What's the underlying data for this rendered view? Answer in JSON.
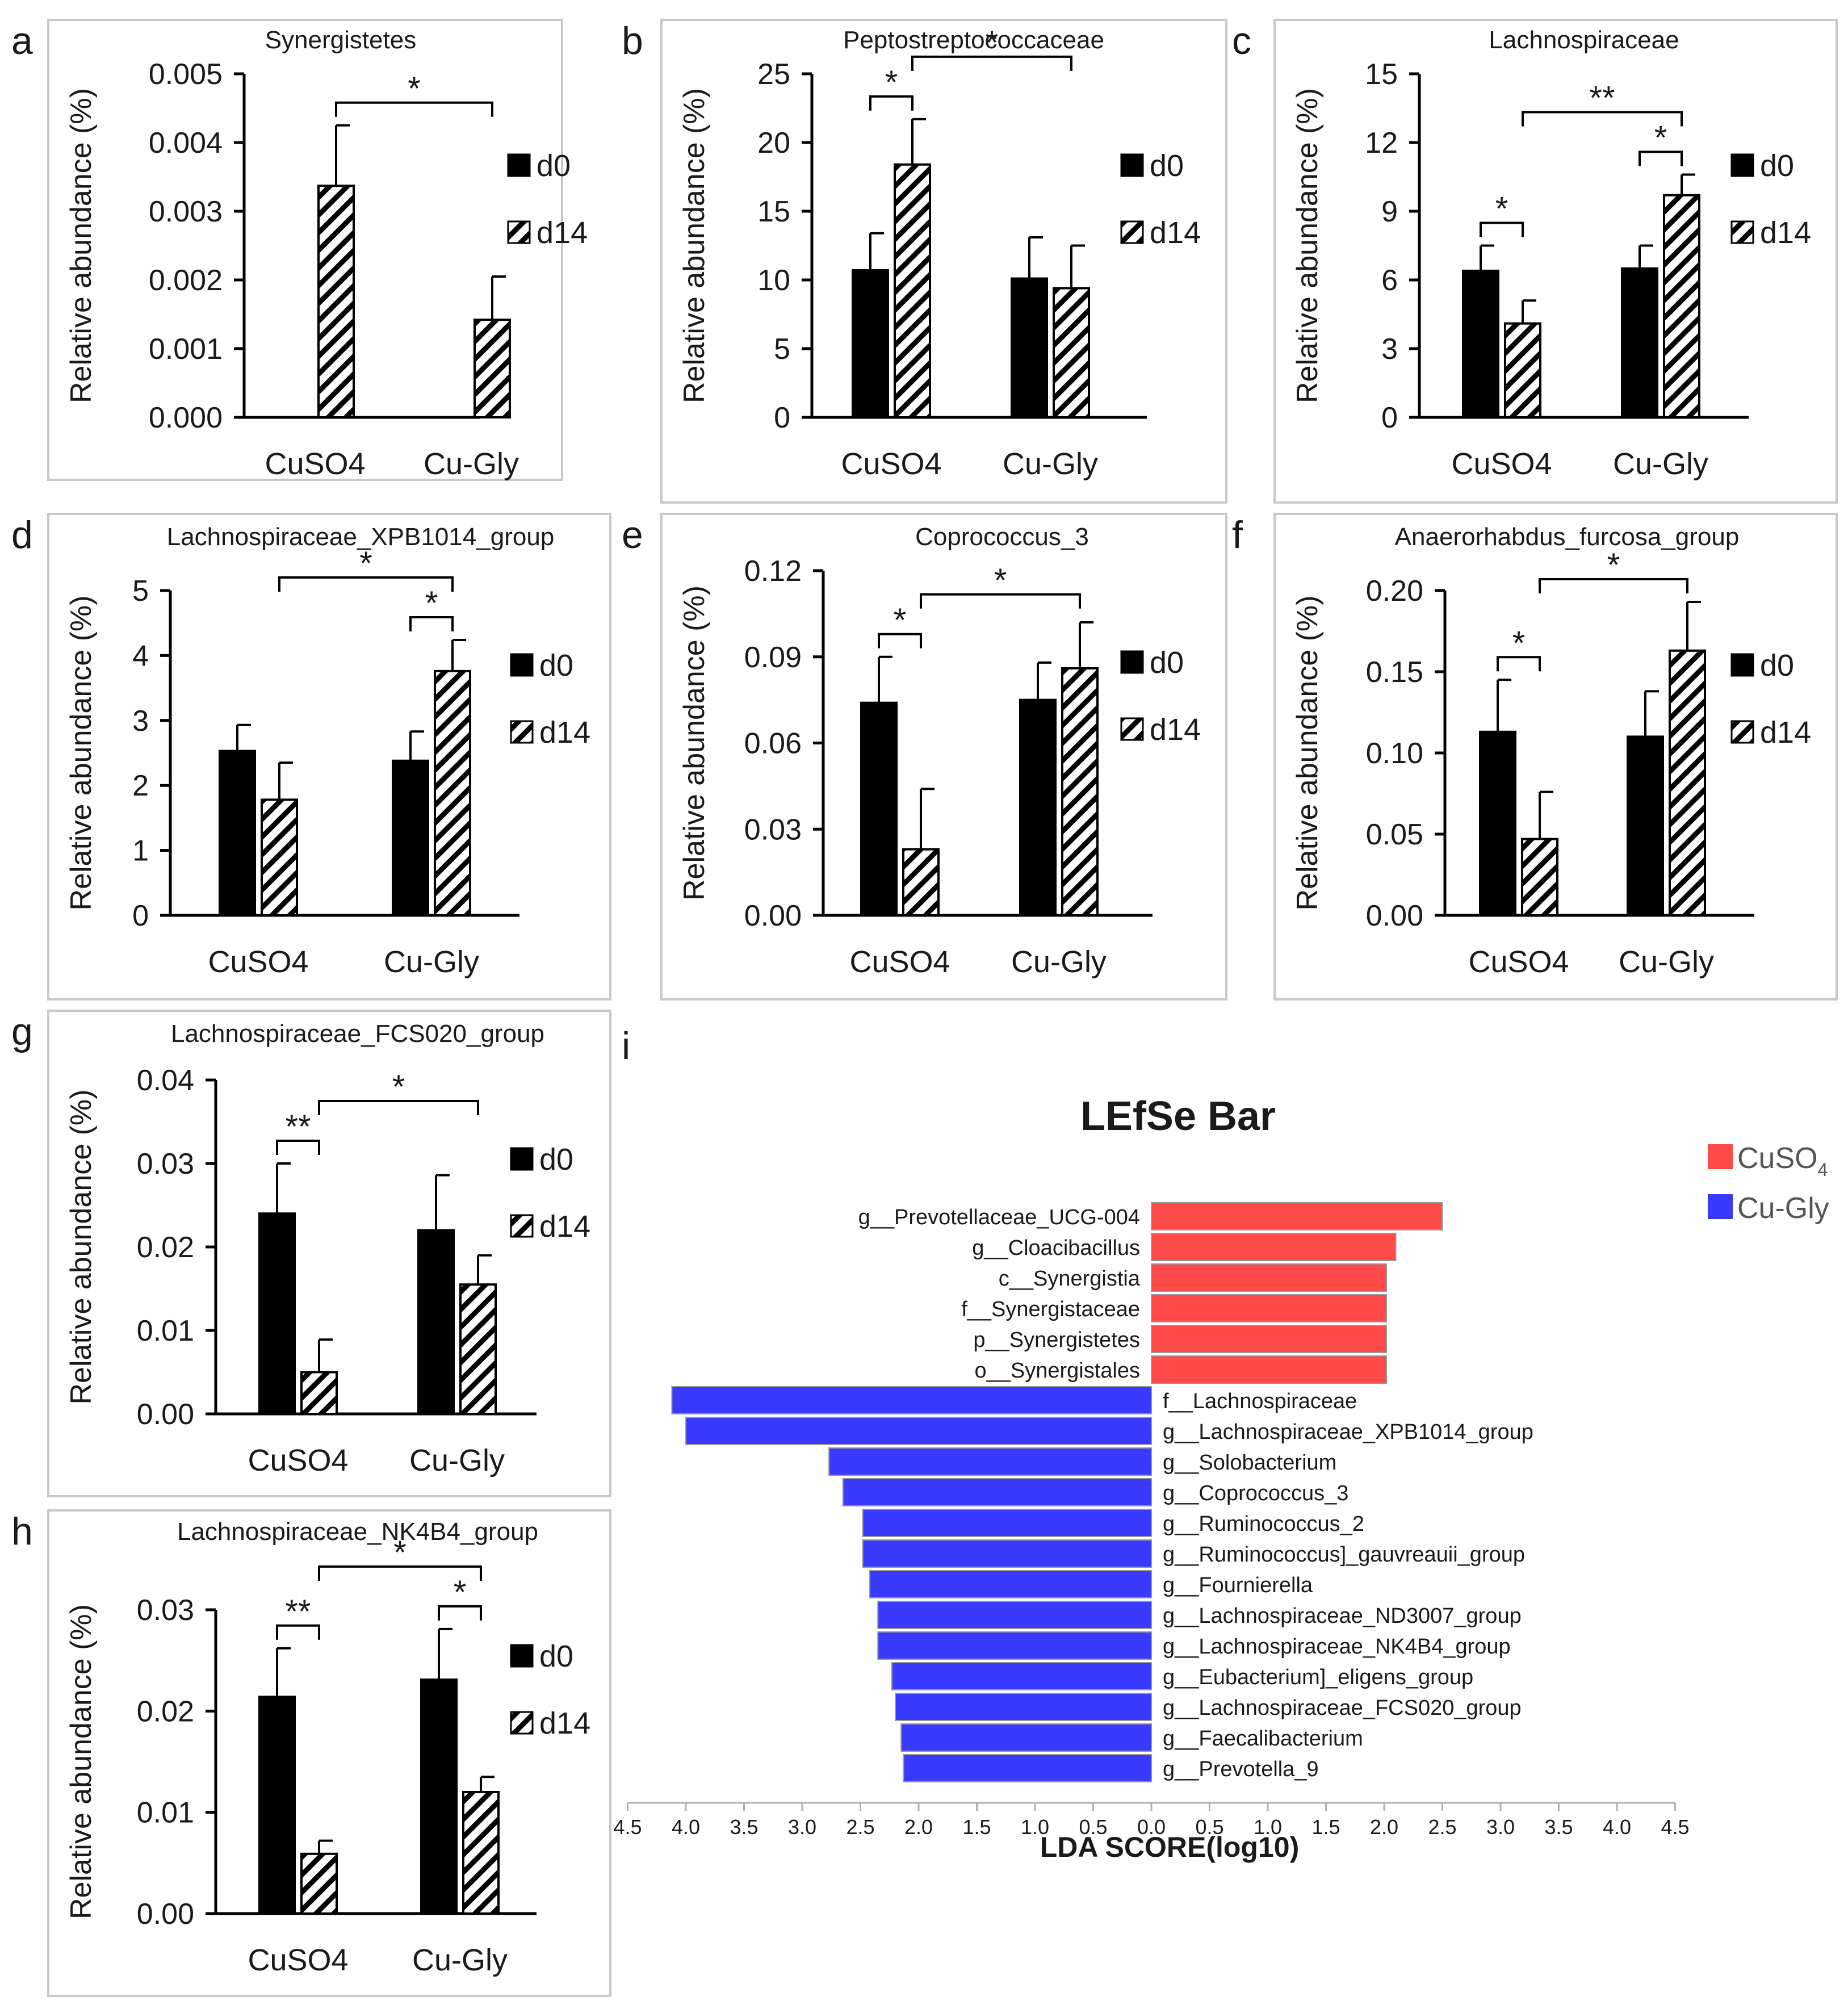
{
  "legend": {
    "d0": "d0",
    "d14": "d14"
  },
  "colors": {
    "d0": "#000000",
    "cuso4": "#ff4a4a",
    "cugly": "#3a3aff",
    "frame": "#c8c8c8",
    "text": "#1a1a1a"
  },
  "chart_data": [
    {
      "panel_letter": "a",
      "type": "bar",
      "title": "Synergistetes",
      "ylabel": "Relative abundance (%)",
      "categories": [
        "CuSO4",
        "Cu-Gly"
      ],
      "ylim": [
        0,
        0.005
      ],
      "yticks": [
        "0.000",
        "0.001",
        "0.002",
        "0.003",
        "0.004",
        "0.005"
      ],
      "series": [
        {
          "name": "d0",
          "values": [
            0,
            0
          ],
          "errors": [
            0,
            0
          ]
        },
        {
          "name": "d14",
          "values": [
            0.00337,
            0.00142
          ],
          "errors": [
            0.00088,
            0.00063
          ]
        }
      ],
      "significance": [
        {
          "from": "CuSO4-d14",
          "to": "Cu-Gly-d14",
          "label": "*"
        }
      ]
    },
    {
      "panel_letter": "b",
      "type": "bar",
      "title": "Peptostreptococcaceae",
      "ylabel": "Relative abundance (%)",
      "categories": [
        "CuSO4",
        "Cu-Gly"
      ],
      "ylim": [
        0,
        25
      ],
      "yticks": [
        "0",
        "5",
        "10",
        "15",
        "20",
        "25"
      ],
      "series": [
        {
          "name": "d0",
          "values": [
            10.7,
            10.1
          ],
          "errors": [
            2.7,
            3.0
          ]
        },
        {
          "name": "d14",
          "values": [
            18.4,
            9.4
          ],
          "errors": [
            3.3,
            3.1
          ]
        }
      ],
      "significance": [
        {
          "from": "CuSO4-d0",
          "to": "CuSO4-d14",
          "label": "*"
        },
        {
          "from": "CuSO4-d14",
          "to": "Cu-Gly-d14",
          "label": "*"
        }
      ]
    },
    {
      "panel_letter": "c",
      "type": "bar",
      "title": "Lachnospiraceae",
      "ylabel": "Relative abundance (%)",
      "categories": [
        "CuSO4",
        "Cu-Gly"
      ],
      "ylim": [
        0,
        15
      ],
      "yticks": [
        "0",
        "3",
        "6",
        "9",
        "12",
        "15"
      ],
      "series": [
        {
          "name": "d0",
          "values": [
            6.4,
            6.5
          ],
          "errors": [
            1.1,
            1.0
          ]
        },
        {
          "name": "d14",
          "values": [
            4.1,
            9.7
          ],
          "errors": [
            1.0,
            0.9
          ]
        }
      ],
      "significance": [
        {
          "from": "CuSO4-d0",
          "to": "CuSO4-d14",
          "label": "*"
        },
        {
          "from": "Cu-Gly-d0",
          "to": "Cu-Gly-d14",
          "label": "*"
        },
        {
          "from": "CuSO4-d14",
          "to": "Cu-Gly-d14",
          "label": "**"
        }
      ]
    },
    {
      "panel_letter": "d",
      "type": "bar",
      "title": "Lachnospiraceae_XPB1014_group",
      "ylabel": "Relative abundance (%)",
      "categories": [
        "CuSO4",
        "Cu-Gly"
      ],
      "ylim": [
        0,
        5
      ],
      "yticks": [
        "0",
        "1",
        "2",
        "3",
        "4",
        "5"
      ],
      "series": [
        {
          "name": "d0",
          "values": [
            2.53,
            2.38
          ],
          "errors": [
            0.4,
            0.45
          ]
        },
        {
          "name": "d14",
          "values": [
            1.78,
            3.76
          ],
          "errors": [
            0.57,
            0.48
          ]
        }
      ],
      "significance": [
        {
          "from": "Cu-Gly-d0",
          "to": "Cu-Gly-d14",
          "label": "*"
        },
        {
          "from": "CuSO4-d14",
          "to": "Cu-Gly-d14",
          "label": "*"
        }
      ]
    },
    {
      "panel_letter": "e",
      "type": "bar",
      "title": "Coprococcus_3",
      "ylabel": "Relative abundance (%)",
      "categories": [
        "CuSO4",
        "Cu-Gly"
      ],
      "ylim": [
        0,
        0.12
      ],
      "yticks": [
        "0.00",
        "0.03",
        "0.06",
        "0.09",
        "0.12"
      ],
      "series": [
        {
          "name": "d0",
          "values": [
            0.074,
            0.075
          ],
          "errors": [
            0.016,
            0.013
          ]
        },
        {
          "name": "d14",
          "values": [
            0.023,
            0.086
          ],
          "errors": [
            0.021,
            0.016
          ]
        }
      ],
      "significance": [
        {
          "from": "CuSO4-d0",
          "to": "CuSO4-d14",
          "label": "*"
        },
        {
          "from": "CuSO4-d14",
          "to": "Cu-Gly-d14",
          "label": "*"
        }
      ]
    },
    {
      "panel_letter": "f",
      "type": "bar",
      "title": "Anaerorhabdus_furcosa_group",
      "ylabel": "Relative abundance (%)",
      "categories": [
        "CuSO4",
        "Cu-Gly"
      ],
      "ylim": [
        0,
        0.2
      ],
      "yticks": [
        "0.00",
        "0.05",
        "0.10",
        "0.15",
        "0.20"
      ],
      "series": [
        {
          "name": "d0",
          "values": [
            0.113,
            0.11
          ],
          "errors": [
            0.032,
            0.028
          ]
        },
        {
          "name": "d14",
          "values": [
            0.047,
            0.163
          ],
          "errors": [
            0.029,
            0.03
          ]
        }
      ],
      "significance": [
        {
          "from": "CuSO4-d0",
          "to": "CuSO4-d14",
          "label": "*"
        },
        {
          "from": "CuSO4-d14",
          "to": "Cu-Gly-d14",
          "label": "*"
        }
      ]
    },
    {
      "panel_letter": "g",
      "type": "bar",
      "title": "Lachnospiraceae_FCS020_group",
      "ylabel": "Relative abundance (%)",
      "categories": [
        "CuSO4",
        "Cu-Gly"
      ],
      "ylim": [
        0,
        0.04
      ],
      "yticks": [
        "0.00",
        "0.01",
        "0.02",
        "0.03",
        "0.04"
      ],
      "series": [
        {
          "name": "d0",
          "values": [
            0.024,
            0.022
          ],
          "errors": [
            0.006,
            0.0066
          ]
        },
        {
          "name": "d14",
          "values": [
            0.005,
            0.0155
          ],
          "errors": [
            0.0039,
            0.0035
          ]
        }
      ],
      "significance": [
        {
          "from": "CuSO4-d0",
          "to": "CuSO4-d14",
          "label": "**"
        },
        {
          "from": "CuSO4-d14",
          "to": "Cu-Gly-d14",
          "label": "*"
        }
      ]
    },
    {
      "panel_letter": "h",
      "type": "bar",
      "title": "Lachnospiraceae_NK4B4_group",
      "ylabel": "Relative abundance (%)",
      "categories": [
        "CuSO4",
        "Cu-Gly"
      ],
      "ylim": [
        0,
        0.03
      ],
      "yticks": [
        "0.00",
        "0.01",
        "0.02",
        "0.03"
      ],
      "series": [
        {
          "name": "d0",
          "values": [
            0.0214,
            0.0231
          ],
          "errors": [
            0.0048,
            0.005
          ]
        },
        {
          "name": "d14",
          "values": [
            0.0059,
            0.012
          ],
          "errors": [
            0.0013,
            0.0015
          ]
        }
      ],
      "significance": [
        {
          "from": "CuSO4-d0",
          "to": "CuSO4-d14",
          "label": "**"
        },
        {
          "from": "Cu-Gly-d0",
          "to": "Cu-Gly-d14",
          "label": "*"
        },
        {
          "from": "CuSO4-d14",
          "to": "Cu-Gly-d14",
          "label": "*"
        }
      ]
    },
    {
      "panel_letter": "i",
      "type": "bar",
      "orientation": "horizontal",
      "title": "LEfSe Bar",
      "xlabel": "LDA SCORE(log10)",
      "xlim": [
        -4.5,
        4.5
      ],
      "xticks": [
        "4.5",
        "4.0",
        "3.5",
        "3.0",
        "2.5",
        "2.0",
        "1.5",
        "1.0",
        "0.5",
        "0.0",
        "0.5",
        "1.0",
        "1.5",
        "2.0",
        "2.5",
        "3.0",
        "3.5",
        "4.0",
        "4.5"
      ],
      "legend": [
        {
          "name": "CuSO",
          "subscript": "4",
          "color": "#ff4a4a"
        },
        {
          "name": "Cu-Gly",
          "color": "#3a3aff"
        }
      ],
      "items": [
        {
          "label": "g__Prevotellaceae_UCG-004",
          "group": "CuSO4",
          "value": 2.5
        },
        {
          "label": "g__Cloacibacillus",
          "group": "CuSO4",
          "value": 2.1
        },
        {
          "label": "c__Synergistia",
          "group": "CuSO4",
          "value": 2.02
        },
        {
          "label": "f__Synergistaceae",
          "group": "CuSO4",
          "value": 2.02
        },
        {
          "label": "p__Synergistetes",
          "group": "CuSO4",
          "value": 2.02
        },
        {
          "label": "o__Synergistales",
          "group": "CuSO4",
          "value": 2.02
        },
        {
          "label": "f__Lachnospiraceae",
          "group": "Cu-Gly",
          "value": 4.12
        },
        {
          "label": "g__Lachnospiraceae_XPB1014_group",
          "group": "Cu-Gly",
          "value": 4.0
        },
        {
          "label": "g__Solobacterium",
          "group": "Cu-Gly",
          "value": 2.77
        },
        {
          "label": "g__Coprococcus_3",
          "group": "Cu-Gly",
          "value": 2.65
        },
        {
          "label": "g__Ruminococcus_2",
          "group": "Cu-Gly",
          "value": 2.48
        },
        {
          "label": "g__Ruminococcus]_gauvreauii_group",
          "group": "Cu-Gly",
          "value": 2.48
        },
        {
          "label": "g__Fournierella",
          "group": "Cu-Gly",
          "value": 2.42
        },
        {
          "label": "g__Lachnospiraceae_ND3007_group",
          "group": "Cu-Gly",
          "value": 2.35
        },
        {
          "label": "g__Lachnospiraceae_NK4B4_group",
          "group": "Cu-Gly",
          "value": 2.35
        },
        {
          "label": "g__Eubacterium]_eligens_group",
          "group": "Cu-Gly",
          "value": 2.23
        },
        {
          "label": "g__Lachnospiraceae_FCS020_group",
          "group": "Cu-Gly",
          "value": 2.2
        },
        {
          "label": "g__Faecalibacterium",
          "group": "Cu-Gly",
          "value": 2.15
        },
        {
          "label": "g__Prevotella_9",
          "group": "Cu-Gly",
          "value": 2.13
        }
      ]
    }
  ]
}
